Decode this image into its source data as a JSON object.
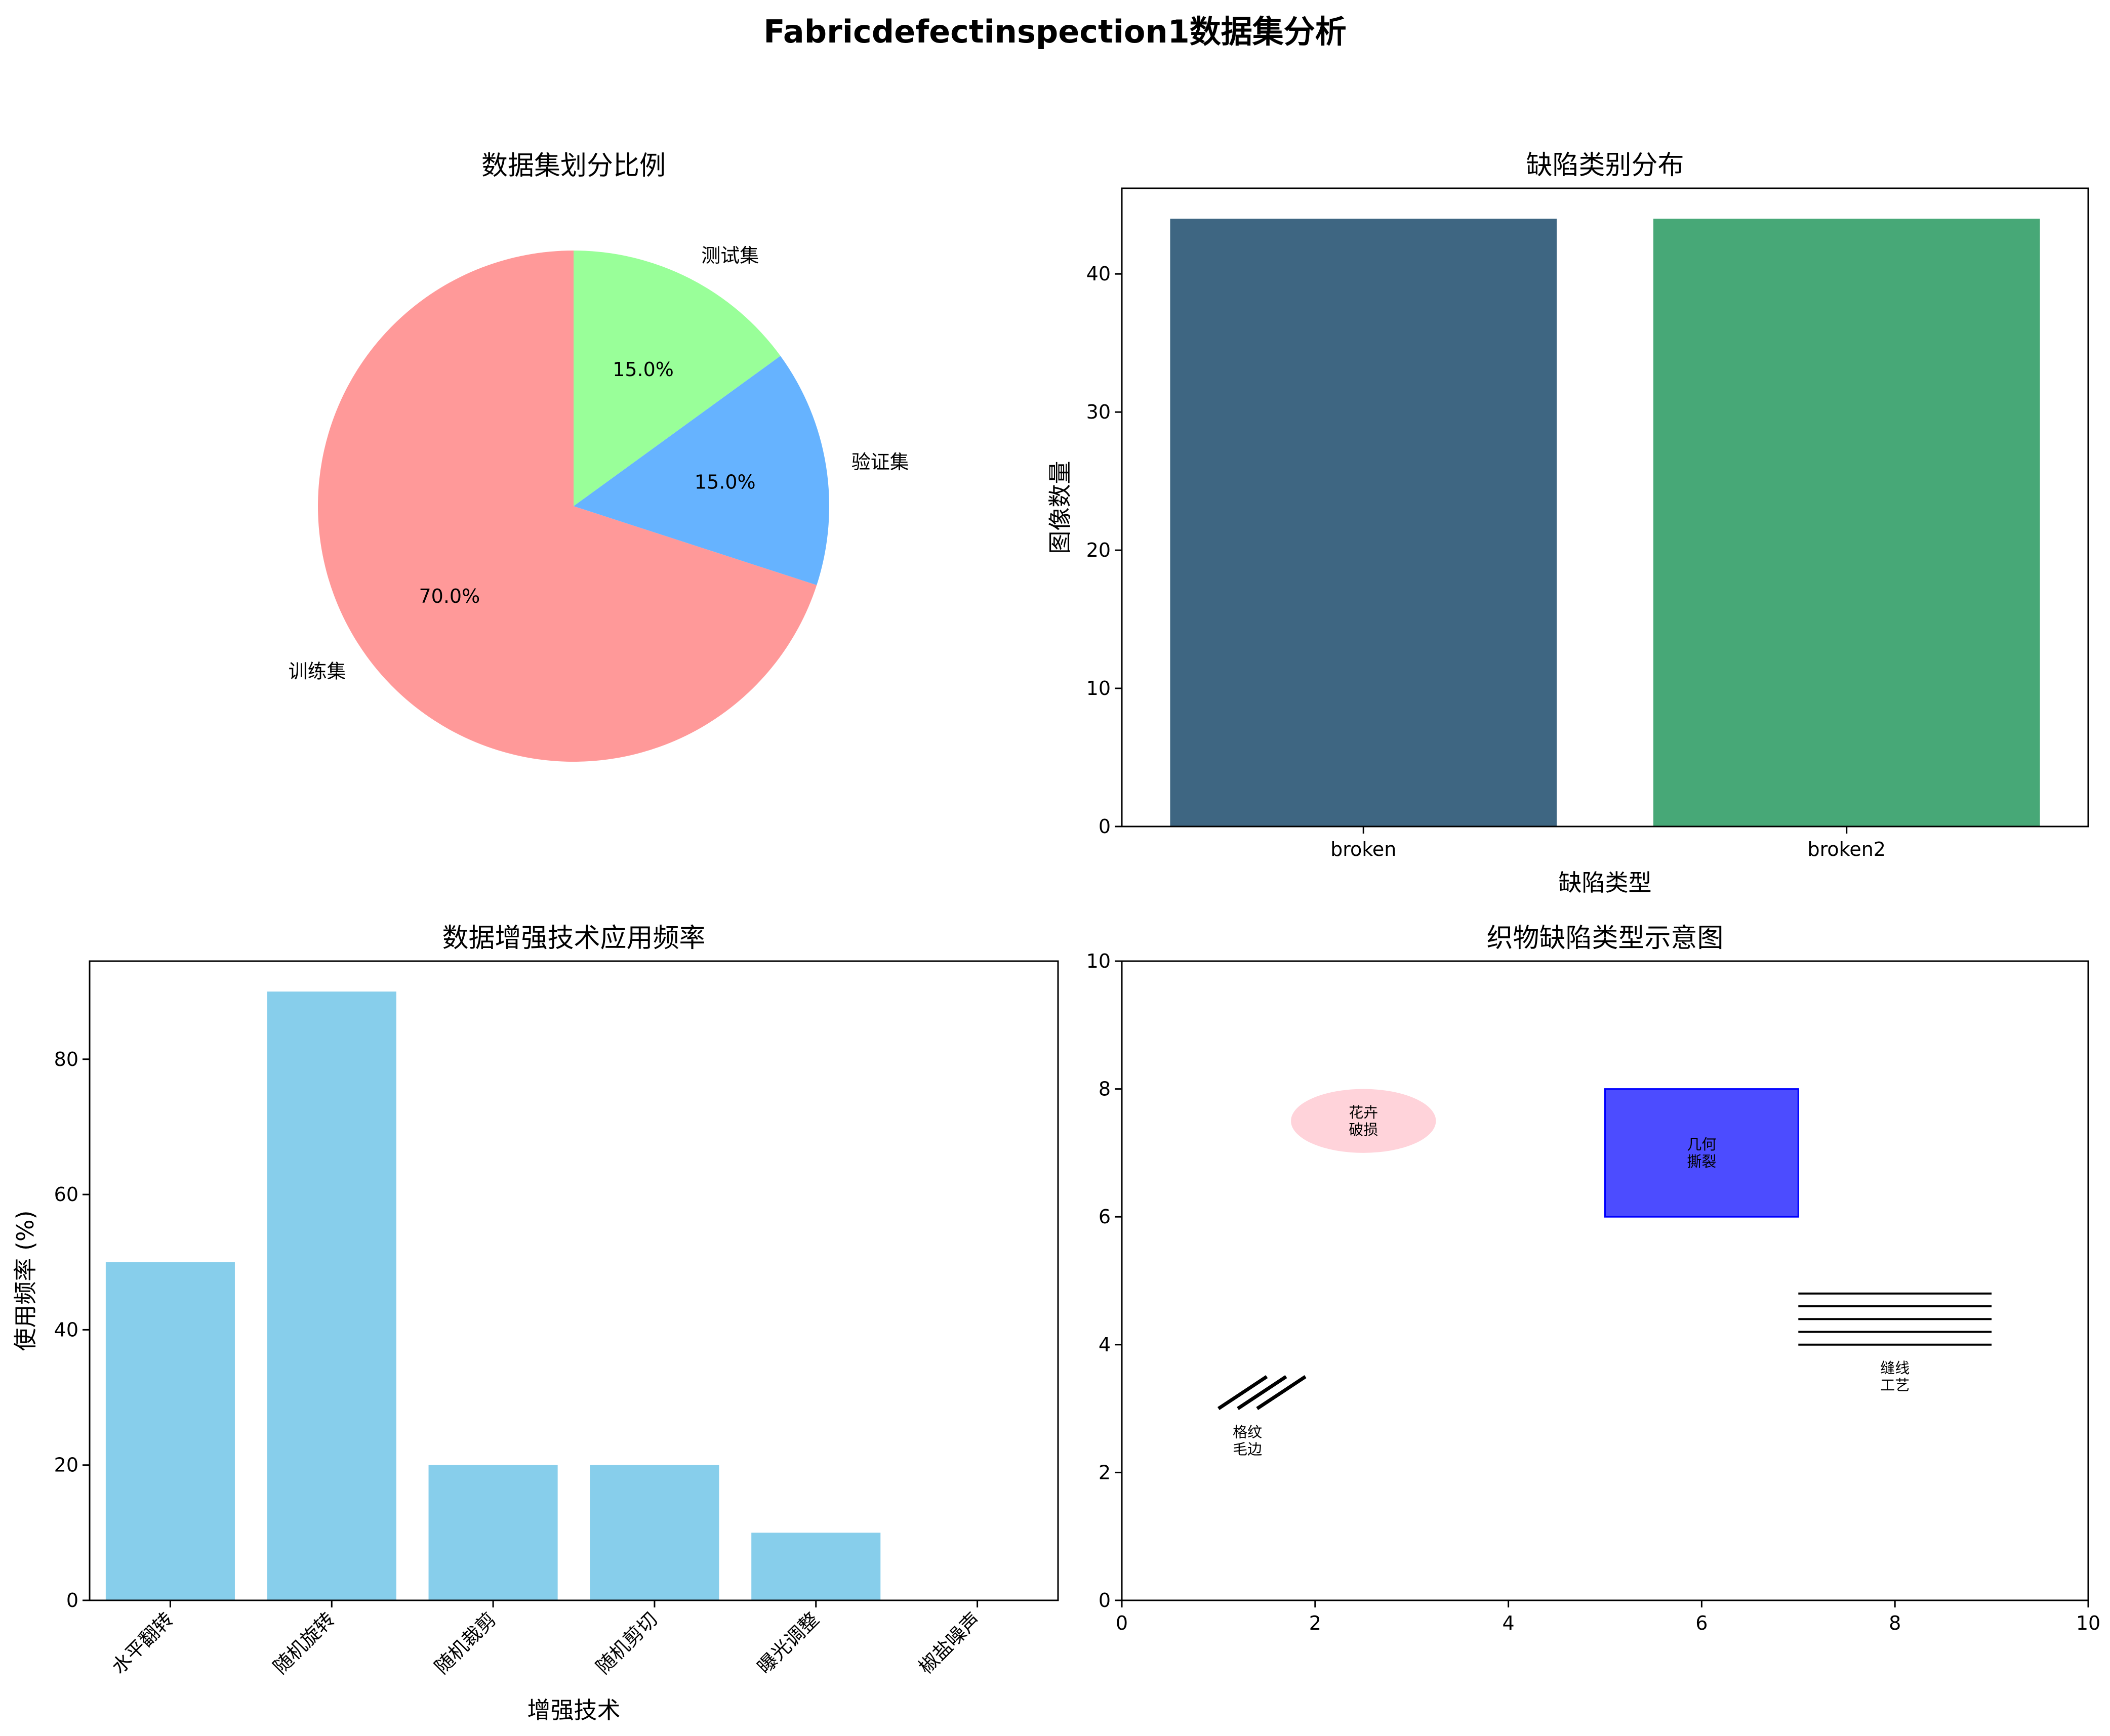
{
  "title": "Fabricdefectinspection1数据集分析",
  "chart_data": [
    {
      "type": "pie",
      "title": "数据集划分比例",
      "labels": [
        "训练集",
        "验证集",
        "测试集"
      ],
      "values": [
        70.0,
        15.0,
        15.0
      ],
      "percent_labels": [
        "70.0%",
        "15.0%",
        "15.0%"
      ],
      "colors": [
        "#ff9999",
        "#66b3ff",
        "#99ff99"
      ],
      "start_angle": 90
    },
    {
      "type": "bar",
      "title": "缺陷类别分布",
      "categories": [
        "broken",
        "broken2"
      ],
      "values": [
        44,
        44
      ],
      "colors": [
        "#3e6682",
        "#47a877"
      ],
      "xlabel": "缺陷类型",
      "ylabel": "图像数量",
      "ylim": [
        0,
        46.2
      ],
      "yticks": [
        0,
        10,
        20,
        30,
        40
      ]
    },
    {
      "type": "bar",
      "title": "数据增强技术应用频率",
      "categories": [
        "水平翻转",
        "随机旋转",
        "随机裁剪",
        "随机剪切",
        "曝光调整",
        "椒盐噪声"
      ],
      "values": [
        50,
        90,
        20,
        20,
        10,
        0
      ],
      "color": "#87ceeb",
      "xlabel": "增强技术",
      "ylabel": "使用频率 (%)",
      "ylim": [
        0,
        94.5
      ],
      "yticks": [
        0,
        20,
        40,
        60,
        80
      ]
    },
    {
      "type": "diagram",
      "title": "织物缺陷类型示意图",
      "xlim": [
        0,
        10
      ],
      "ylim": [
        0,
        10
      ],
      "xticks": [
        0,
        2,
        4,
        6,
        8,
        10
      ],
      "yticks": [
        0,
        2,
        4,
        6,
        8,
        10
      ],
      "shapes": [
        {
          "kind": "ellipse",
          "label_lines": [
            "花卉",
            "破损"
          ],
          "cx": 2.5,
          "cy": 7.5,
          "rx": 0.75,
          "ry": 0.5,
          "color": "#ffc0cb"
        },
        {
          "kind": "rect",
          "label_lines": [
            "几何",
            "撕裂"
          ],
          "x0": 5,
          "y0": 6,
          "x1": 7,
          "y1": 8,
          "color": "#0000ff"
        },
        {
          "kind": "hlines",
          "label_lines": [
            "缝线",
            "工艺"
          ],
          "x0": 7,
          "x1": 9,
          "ys": [
            4.0,
            4.2,
            4.4,
            4.6,
            4.8
          ],
          "label_x": 8,
          "label_y": 3.5
        },
        {
          "kind": "diagonals",
          "label_lines": [
            "格纹",
            "毛边"
          ],
          "lines": [
            [
              1.0,
              3.0,
              1.5,
              3.5
            ],
            [
              1.2,
              3.0,
              1.7,
              3.5
            ],
            [
              1.4,
              3.0,
              1.9,
              3.5
            ]
          ],
          "label_x": 1.3,
          "label_y": 2.5
        }
      ]
    }
  ]
}
